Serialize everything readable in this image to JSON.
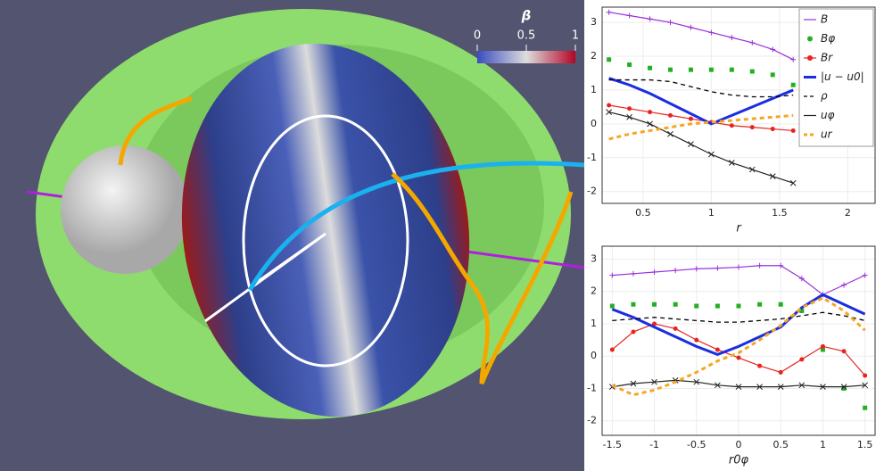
{
  "render": {
    "colorbar_label": "β",
    "colorbar_lim": [
      0,
      1
    ],
    "colorbar_ticks": [
      0,
      0.5,
      1
    ]
  },
  "chart_data": [
    {
      "type": "line",
      "xlabel": "r",
      "xlim": [
        0.2,
        2.2
      ],
      "ylim": [
        -2.35,
        3.45
      ],
      "xticks": [
        0.5,
        1,
        1.5,
        2
      ],
      "yticks": [
        -2,
        -1,
        0,
        1,
        2,
        3
      ],
      "grid": true,
      "legend": "upper right",
      "x": [
        0.25,
        0.4,
        0.55,
        0.7,
        0.85,
        1.0,
        1.15,
        1.3,
        1.45,
        1.6
      ],
      "series": [
        {
          "name": "B",
          "color": "#9b30d9",
          "style": "plus",
          "values": [
            3.3,
            3.2,
            3.1,
            3.0,
            2.85,
            2.7,
            2.55,
            2.4,
            2.2,
            1.9
          ]
        },
        {
          "name": "Bφ",
          "color": "#22b022",
          "style": "dots",
          "values": [
            1.9,
            1.75,
            1.65,
            1.6,
            1.6,
            1.6,
            1.6,
            1.55,
            1.45,
            1.15
          ]
        },
        {
          "name": "Br",
          "color": "#e8231e",
          "style": "line-dots",
          "values": [
            0.55,
            0.45,
            0.35,
            0.25,
            0.15,
            0.05,
            -0.05,
            -0.1,
            -0.15,
            -0.2
          ]
        },
        {
          "name": "|u − u0|",
          "color": "#1a2ee0",
          "style": "thick",
          "values": [
            1.35,
            1.15,
            0.9,
            0.6,
            0.3,
            0.0,
            0.25,
            0.5,
            0.75,
            1.0
          ]
        },
        {
          "name": "ρ",
          "color": "#000000",
          "style": "dash",
          "values": [
            1.3,
            1.3,
            1.3,
            1.25,
            1.1,
            0.95,
            0.85,
            0.8,
            0.8,
            0.85
          ]
        },
        {
          "name": "uφ",
          "color": "#222222",
          "style": "cross",
          "values": [
            0.35,
            0.2,
            0.0,
            -0.3,
            -0.6,
            -0.9,
            -1.15,
            -1.35,
            -1.55,
            -1.75
          ]
        },
        {
          "name": "ur",
          "color": "#f5a623",
          "style": "thick-dash",
          "values": [
            -0.45,
            -0.3,
            -0.2,
            -0.1,
            0.0,
            0.05,
            0.1,
            0.15,
            0.2,
            0.25
          ]
        }
      ]
    },
    {
      "type": "line",
      "xlabel": "r0φ",
      "xlim": [
        -1.62,
        1.62
      ],
      "ylim": [
        -2.45,
        3.4
      ],
      "xticks": [
        -1.5,
        -1,
        -0.5,
        0,
        0.5,
        1,
        1.5
      ],
      "yticks": [
        -2,
        -1,
        0,
        1,
        2,
        3
      ],
      "grid": true,
      "x": [
        -1.5,
        -1.25,
        -1,
        -0.75,
        -0.5,
        -0.25,
        0,
        0.25,
        0.5,
        0.75,
        1,
        1.25,
        1.5
      ],
      "series": [
        {
          "name": "B",
          "color": "#9b30d9",
          "style": "plus",
          "values": [
            2.5,
            2.55,
            2.6,
            2.65,
            2.7,
            2.72,
            2.75,
            2.8,
            2.8,
            2.4,
            1.9,
            2.2,
            2.5
          ]
        },
        {
          "name": "Bφ",
          "color": "#22b022",
          "style": "dots",
          "values": [
            1.55,
            1.6,
            1.6,
            1.6,
            1.55,
            1.55,
            1.55,
            1.6,
            1.6,
            1.4,
            0.2,
            -1.0,
            -1.6
          ]
        },
        {
          "name": "Br",
          "color": "#e8231e",
          "style": "line-dots",
          "values": [
            0.2,
            0.75,
            1.0,
            0.85,
            0.5,
            0.2,
            -0.05,
            -0.3,
            -0.5,
            -0.1,
            0.3,
            0.15,
            -0.6
          ]
        },
        {
          "name": "|u − u0|",
          "color": "#1a2ee0",
          "style": "thick",
          "values": [
            1.45,
            1.2,
            0.9,
            0.6,
            0.3,
            0.05,
            0.3,
            0.6,
            0.9,
            1.5,
            1.9,
            1.6,
            1.3
          ]
        },
        {
          "name": "ρ",
          "color": "#000000",
          "style": "dash",
          "values": [
            1.1,
            1.15,
            1.2,
            1.15,
            1.1,
            1.05,
            1.05,
            1.1,
            1.15,
            1.25,
            1.35,
            1.25,
            1.1
          ]
        },
        {
          "name": "uφ",
          "color": "#222222",
          "style": "cross",
          "values": [
            -0.95,
            -0.85,
            -0.8,
            -0.75,
            -0.8,
            -0.9,
            -0.95,
            -0.95,
            -0.95,
            -0.9,
            -0.95,
            -0.95,
            -0.9
          ]
        },
        {
          "name": "ur",
          "color": "#f5a623",
          "style": "thick-dash",
          "values": [
            -0.9,
            -1.2,
            -1.05,
            -0.8,
            -0.5,
            -0.15,
            0.1,
            0.5,
            0.95,
            1.5,
            1.8,
            1.4,
            0.8
          ]
        }
      ]
    }
  ]
}
